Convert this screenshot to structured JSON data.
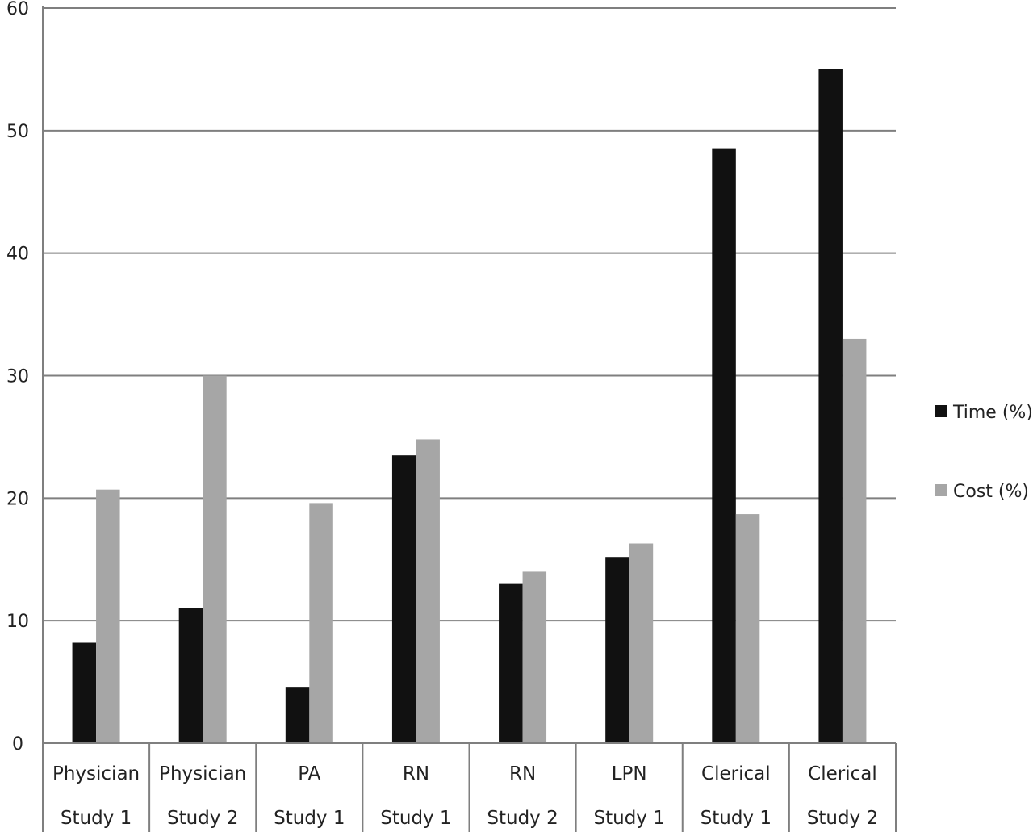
{
  "chart_data": {
    "type": "bar",
    "categories": [
      [
        "Physician",
        "Study 1"
      ],
      [
        "Physician",
        "Study 2"
      ],
      [
        "PA",
        "Study 1"
      ],
      [
        "RN",
        "Study 1"
      ],
      [
        "RN",
        "Study 2"
      ],
      [
        "LPN",
        "Study 1"
      ],
      [
        "Clerical",
        "Study 1"
      ],
      [
        "Clerical",
        "Study 2"
      ]
    ],
    "series": [
      {
        "name": "Time (%)",
        "color": "#111111",
        "values": [
          8.2,
          11.0,
          4.6,
          23.5,
          13.0,
          15.2,
          48.5,
          55.0
        ]
      },
      {
        "name": "Cost (%)",
        "color": "#a6a6a6",
        "values": [
          20.7,
          30.0,
          19.6,
          24.8,
          14.0,
          16.3,
          18.7,
          33.0
        ]
      }
    ],
    "ylim": [
      0,
      60
    ],
    "yticks": [
      0,
      10,
      20,
      30,
      40,
      50,
      60
    ],
    "grid": true,
    "legend_position": "right",
    "title": "",
    "xlabel": "",
    "ylabel": ""
  }
}
